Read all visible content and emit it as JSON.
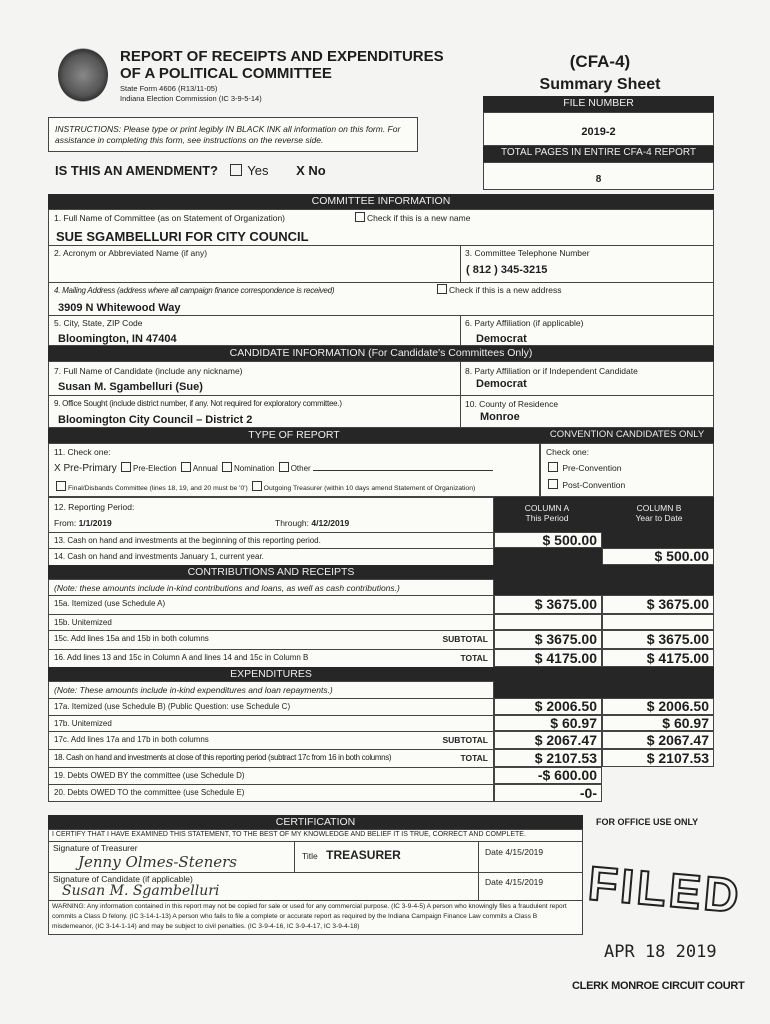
{
  "header": {
    "title1": "REPORT OF RECEIPTS AND EXPENDITURES",
    "title2": "OF A POLITICAL COMMITTEE",
    "form_no": "State Form 4606 (R13/11-05)",
    "commission": "Indiana Election Commission (IC 3-9-5-14)",
    "form_code": "(CFA-4)",
    "sheet": "Summary Sheet",
    "file_number_label": "FILE NUMBER",
    "file_number": "2019-2",
    "total_pages_label": "TOTAL PAGES IN ENTIRE CFA-4 REPORT",
    "total_pages": "8"
  },
  "instructions": "INSTRUCTIONS: Please type or print legibly IN BLACK INK all information on this form. For assistance in completing this form, see instructions on the reverse side.",
  "amendment": {
    "question": "IS THIS AN AMENDMENT?",
    "yes": "Yes",
    "no": "X No"
  },
  "committee": {
    "heading": "COMMITTEE INFORMATION",
    "name_label": "1. Full Name of Committee (as on Statement of Organization)",
    "new_name_label": "Check if this is a new name",
    "name": "SUE SGAMBELLURI FOR CITY COUNCIL",
    "acronym_label": "2. Acronym or Abbreviated Name (if any)",
    "phone_label": "3. Committee Telephone Number",
    "phone": "( 812 ) 345-3215",
    "address_label": "4. Mailing Address (address where all campaign finance correspondence is received)",
    "new_address_label": "Check if this is a new address",
    "address": "3909 N Whitewood Way",
    "city_label": "5. City, State, ZIP Code",
    "city": "Bloomington, IN 47404",
    "party_label": "6. Party Affiliation (if applicable)",
    "party": "Democrat"
  },
  "candidate": {
    "heading": "CANDIDATE INFORMATION (For Candidate's Committees Only)",
    "name_label": "7. Full Name of Candidate (include any nickname)",
    "name": "Susan M. Sgambelluri (Sue)",
    "party_label": "8. Party Affiliation or if Independent Candidate",
    "party": "Democrat",
    "office_label": "9. Office Sought (include district number, if any. Not required for exploratory committee.)",
    "office": "Bloomington City Council – District 2",
    "county_label": "10. County of Residence",
    "county": "Monroe"
  },
  "report_type": {
    "heading": "TYPE OF REPORT",
    "check_one": "11. Check one:",
    "pre_primary": "X Pre-Primary",
    "pre_election": "Pre-Election",
    "annual": "Annual",
    "nomination": "Nomination",
    "other": "Other",
    "final": "Final/Disbands Committee (lines 18, 19, and 20 must be '0')",
    "outgoing": "Outgoing Treasurer (within 10 days amend Statement of Organization)"
  },
  "convention": {
    "heading": "CONVENTION CANDIDATES ONLY",
    "check_one": "Check one:",
    "pre": "Pre-Convention",
    "post": "Post-Convention"
  },
  "period": {
    "label": "12. Reporting Period:",
    "from_label": "From:",
    "from": "1/1/2019",
    "through_label": "Through:",
    "through": "4/12/2019"
  },
  "columns": {
    "a": "COLUMN A",
    "a_sub": "This Period",
    "b": "COLUMN B",
    "b_sub": "Year to Date"
  },
  "lines": {
    "l13": {
      "label": "13. Cash on hand and investments at the beginning of this reporting period.",
      "a": "$  500.00"
    },
    "l14": {
      "label": "14. Cash on hand and investments January 1, current year.",
      "b": "$  500.00"
    },
    "contrib_heading": "CONTRIBUTIONS AND RECEIPTS",
    "contrib_note": "(Note: these amounts include in-kind contributions and loans, as well as cash contributions.)",
    "l15a": {
      "label": "15a. Itemized (use Schedule A)",
      "a": "$ 3675.00",
      "b": "$ 3675.00"
    },
    "l15b": {
      "label": "15b. Unitemized"
    },
    "l15c": {
      "label": "15c. Add lines 15a and 15b in both columns",
      "tag": "SUBTOTAL",
      "a": "$ 3675.00",
      "b": "$ 3675.00"
    },
    "l16": {
      "label": "16. Add lines 13 and 15c in Column A and lines 14 and 15c in Column B",
      "tag": "TOTAL",
      "a": "$ 4175.00",
      "b": "$ 4175.00"
    },
    "exp_heading": "EXPENDITURES",
    "exp_note": "(Note: These amounts include in-kind expenditures and loan repayments.)",
    "l17a": {
      "label": "17a. Itemized (use Schedule B) (Public Question: use Schedule C)",
      "a": "$ 2006.50",
      "b": "$ 2006.50"
    },
    "l17b": {
      "label": "17b. Unitemized",
      "a": "$ 60.97",
      "b": "$ 60.97"
    },
    "l17c": {
      "label": "17c. Add lines 17a and 17b in both columns",
      "tag": "SUBTOTAL",
      "a": "$ 2067.47",
      "b": "$ 2067.47"
    },
    "l18": {
      "label": "18. Cash on hand and investments at close of this reporting period (subtract 17c from 16 in both columns)",
      "tag": "TOTAL",
      "a": "$ 2107.53",
      "b": "$ 2107.53"
    },
    "l19": {
      "label": "19. Debts OWED BY the committee (use Schedule D)",
      "a": "-$ 600.00"
    },
    "l20": {
      "label": "20. Debts OWED TO the committee (use Schedule E)",
      "a": "-0-"
    }
  },
  "certification": {
    "heading": "CERTIFICATION",
    "statement": "I CERTIFY THAT I HAVE EXAMINED THIS STATEMENT, TO THE BEST OF MY KNOWLEDGE AND BELIEF IT IS TRUE, CORRECT AND COMPLETE.",
    "treasurer_label": "Signature of Treasurer",
    "treasurer_sig": "Jenny Olmes-Steners",
    "title_label": "Title",
    "title": "TREASURER",
    "date1": "Date  4/15/2019",
    "candidate_label": "Signature of Candidate (if applicable)",
    "candidate_sig": "Susan M. Sgambelluri",
    "date2": "Date  4/15/2019",
    "warning": "WARNING: Any information contained in this report may not be copied for sale or used for any commercial purpose. (IC 3-9-4-5) A person who knowingly files a fraudulent report commits a Class D felony. (IC 3-14-1-13) A person who fails to file a complete or accurate report as required by the Indiana Campaign Finance Law commits a Class B misdemeanor, (IC 3-14-1-14) and may be subject to civil penalties. (IC 3-9-4-16, IC 3-9-4-17, IC 3-9-4-18)"
  },
  "office": {
    "label": "FOR OFFICE USE ONLY",
    "stamp": "FILED",
    "stamp_date": "APR 18 2019",
    "clerk": "CLERK MONROE CIRCUIT COURT"
  }
}
